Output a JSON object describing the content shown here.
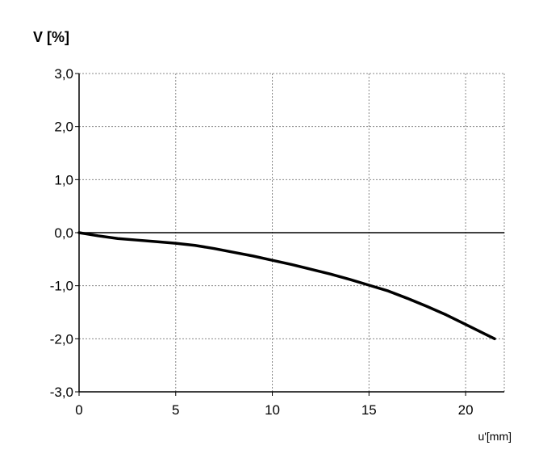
{
  "chart_data": {
    "type": "line",
    "title": "",
    "ylabel": "V [%]",
    "xlabel": "u'[mm]",
    "xlim": [
      0,
      22
    ],
    "ylim": [
      -3,
      3
    ],
    "x_ticks": [
      0,
      5,
      10,
      15,
      20
    ],
    "x_tick_labels": [
      "0",
      "5",
      "10",
      "15",
      "20"
    ],
    "y_ticks": [
      3,
      2,
      1,
      0,
      -1,
      -2,
      -3
    ],
    "y_tick_labels": [
      "3,0",
      "2,0",
      "1,0",
      "0,0",
      "-1,0",
      "-2,0",
      "-3,0"
    ],
    "grid": true,
    "zero_line": true,
    "series": [
      {
        "x": [
          0,
          1,
          2,
          3,
          4,
          5,
          6,
          7,
          8,
          9,
          10,
          11,
          12,
          13,
          14,
          15,
          16,
          17,
          18,
          19,
          20,
          21,
          21.5
        ],
        "y": [
          0.0,
          -0.06,
          -0.11,
          -0.14,
          -0.17,
          -0.2,
          -0.24,
          -0.3,
          -0.37,
          -0.44,
          -0.52,
          -0.6,
          -0.69,
          -0.78,
          -0.88,
          -0.99,
          -1.1,
          -1.24,
          -1.39,
          -1.55,
          -1.73,
          -1.91,
          -2.0
        ],
        "color": "#000000"
      }
    ]
  }
}
